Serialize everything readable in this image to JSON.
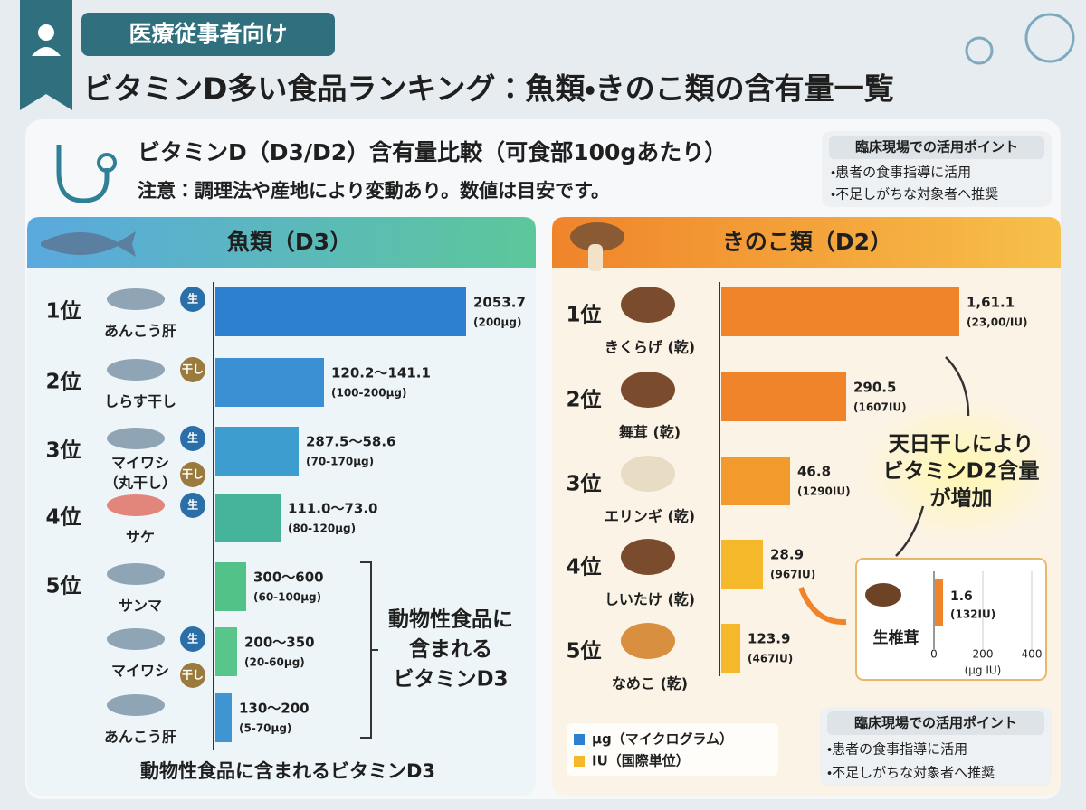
{
  "header": {
    "badge": "医療従事者向け",
    "title": "ビタミンD多い食品ランキング：魚類・きのこ類の含有量一覧"
  },
  "intro": {
    "subtitle": "ビタミンD（D3/D2）含有量比較（可食部100gあたり）",
    "note": "注意：調理法や産地により変動あり。数値は目安です。",
    "tips": {
      "title": "臨床現場での活用ポイント",
      "items": [
        "・患者の食事指導に活用",
        "・不足しがちな対象者へ推奨"
      ]
    }
  },
  "fish": {
    "title": "魚類（D3）",
    "rows": [
      {
        "rank": "1位",
        "name": [
          "あんこう肝"
        ],
        "tags": [
          "生"
        ],
        "value": "2053.7",
        "sub": "(200µg)"
      },
      {
        "rank": "2位",
        "name": [
          "しらす干し"
        ],
        "tags": [
          "干し"
        ],
        "value": "120.2～141.1",
        "sub": "(100-200µg)"
      },
      {
        "rank": "3位",
        "name": [
          "マイワシ",
          "（丸干し）"
        ],
        "tags": [
          "生",
          "干し"
        ],
        "value": "287.5～58.6",
        "sub": "(70-170µg)"
      },
      {
        "rank": "4位",
        "name": [
          "サケ"
        ],
        "tags": [
          "生"
        ],
        "value": "111.0～73.0",
        "sub": "(80-120µg)"
      },
      {
        "rank": "5位",
        "name": [
          "サンマ"
        ],
        "tags": [],
        "value": "300～600",
        "sub": "(60-100µg)"
      },
      {
        "name": [
          "マイワシ"
        ],
        "tags": [
          "生",
          "干し"
        ],
        "value": "200～350",
        "sub": "(20-60µg)"
      },
      {
        "name": [
          "あんこう肝"
        ],
        "tags": [],
        "value": "130～200",
        "sub": "(5-70µg)"
      }
    ],
    "bracket_note": [
      "動物性食品に",
      "含まれる",
      "ビタミンD3"
    ],
    "footer": "動物性食品に含まれるビタミンD3"
  },
  "mushroom": {
    "title": "きのこ類（D2）",
    "rows": [
      {
        "rank": "1位",
        "name": "きくらげ (乾)",
        "value": "1,61.1",
        "sub": "(23,00/IU)"
      },
      {
        "rank": "2位",
        "name": "舞茸 (乾)",
        "value": "290.5",
        "sub": "(1607IU)"
      },
      {
        "rank": "3位",
        "name": "エリンギ (乾)",
        "value": "46.8",
        "sub": "(1290IU)"
      },
      {
        "rank": "4位",
        "name": "しいたけ (乾)",
        "value": "28.9",
        "sub": "(967IU)"
      },
      {
        "rank": "5位",
        "name": "なめこ (乾)",
        "value": "123.9",
        "sub": "(467IU)"
      }
    ],
    "callout": [
      "天日干しにより",
      "ビタミンD2含量",
      "が増加"
    ],
    "inset": {
      "name": "生椎茸",
      "value": "1.6",
      "sub": "(132IU)",
      "ticks": [
        "0",
        "200",
        "400"
      ],
      "unit": "(µg IU)"
    },
    "legend": [
      "µg（マイクログラム）",
      "IU（国際単位）"
    ],
    "tips": {
      "title": "臨床現場での活用ポイント",
      "items": [
        "・患者の食事指導に活用",
        "・不足しがちな対象者へ推奨"
      ]
    }
  }
}
